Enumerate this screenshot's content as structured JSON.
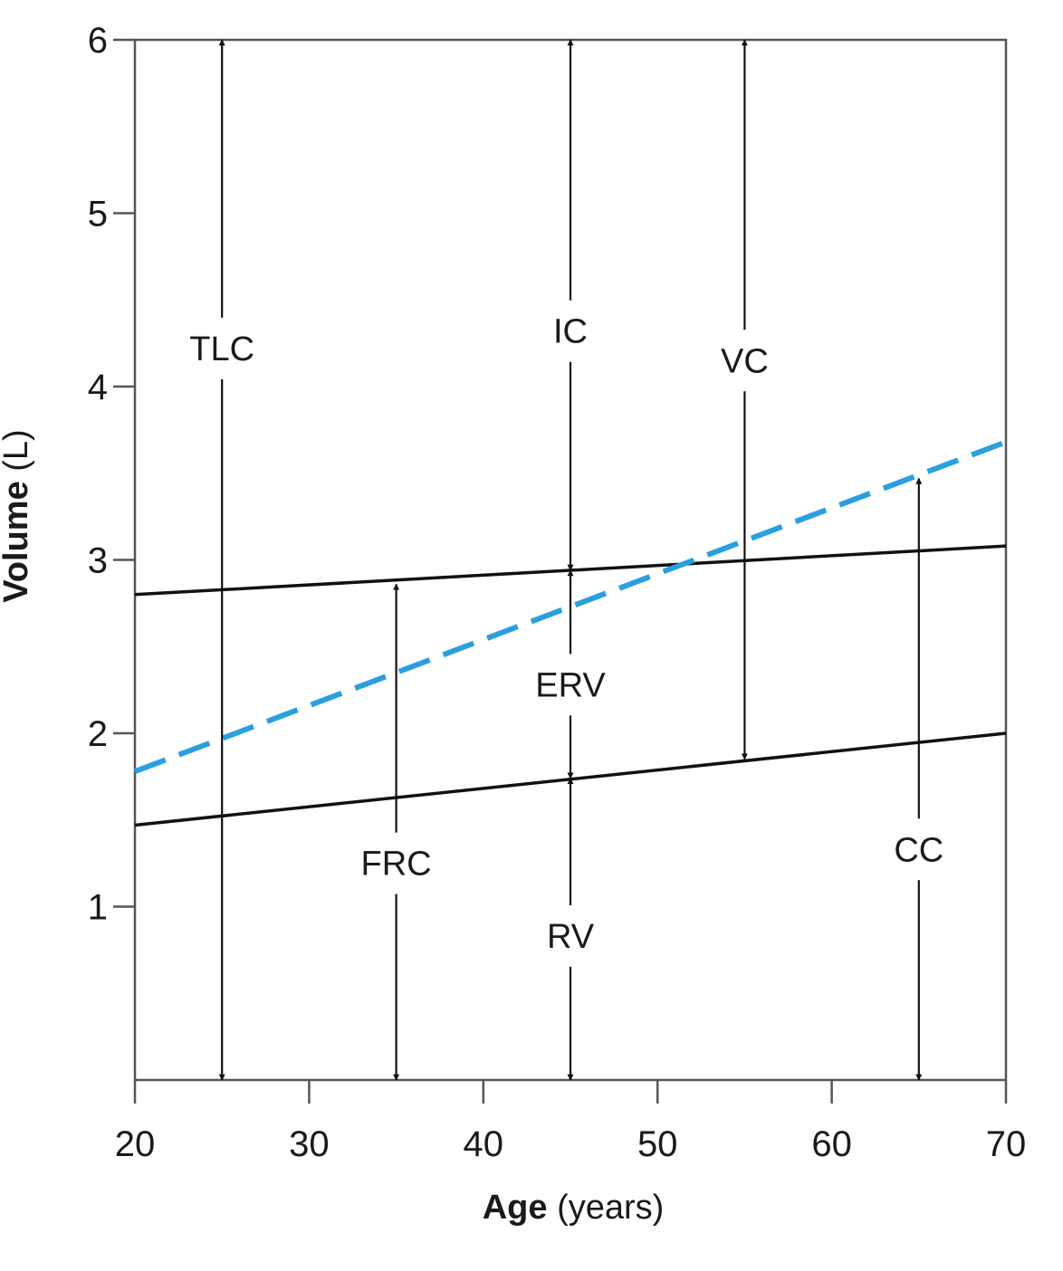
{
  "chart_data": {
    "type": "line",
    "xlabel_bold": "Age",
    "xlabel_rest": "(years)",
    "ylabel_bold": "Volume",
    "ylabel_rest": "(L)",
    "xlim": [
      20,
      70
    ],
    "ylim": [
      0,
      6
    ],
    "x_ticks": [
      "20",
      "30",
      "40",
      "50",
      "60",
      "70"
    ],
    "y_ticks": [
      "1",
      "2",
      "3",
      "4",
      "5",
      "6"
    ],
    "grid": false,
    "series": [
      {
        "x": [
          20,
          70
        ],
        "y": [
          2.8,
          3.08
        ],
        "color": "#111111",
        "style": "solid"
      },
      {
        "x": [
          20,
          70
        ],
        "y": [
          1.47,
          2.0
        ],
        "color": "#111111",
        "style": "solid"
      },
      {
        "x": [
          20,
          70
        ],
        "y": [
          1.78,
          3.68
        ],
        "color": "#2a9fe0",
        "style": "dashed"
      }
    ],
    "annotations": [
      {
        "label": "TLC",
        "x": 25,
        "from": 0,
        "to": 6,
        "label_y": 4.22
      },
      {
        "label": "IC",
        "x": 45,
        "from": 2.94,
        "to": 6,
        "label_y": 4.32
      },
      {
        "label": "VC",
        "x": 55,
        "from": 1.85,
        "to": 6,
        "label_y": 4.15
      },
      {
        "label": "FRC",
        "x": 35,
        "from": 0,
        "to": 2.86,
        "label_y": 1.25
      },
      {
        "label": "ERV",
        "x": 45,
        "from": 1.74,
        "to": 2.94,
        "label_y": 2.28
      },
      {
        "label": "RV",
        "x": 45,
        "from": 0,
        "to": 1.74,
        "label_y": 0.83
      },
      {
        "label": "CC",
        "x": 65,
        "from": 0,
        "to": 3.47,
        "label_y": 1.33
      }
    ]
  }
}
